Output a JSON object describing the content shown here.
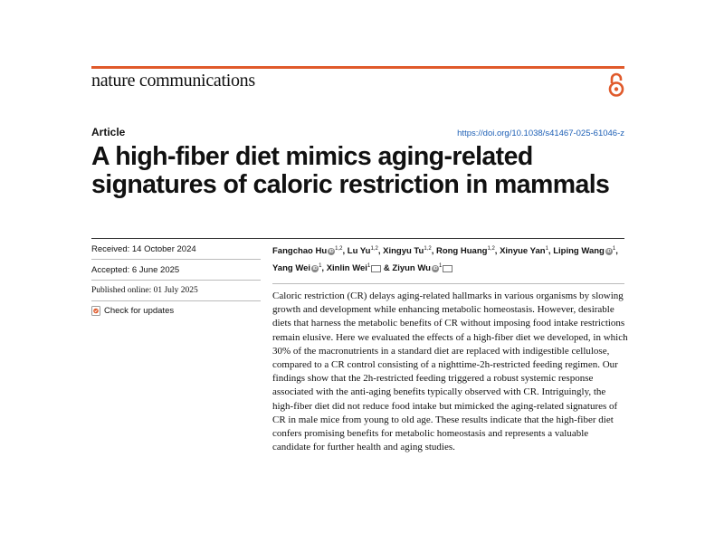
{
  "journal": "nature communications",
  "article_type": "Article",
  "doi": "https://doi.org/10.1038/s41467-025-61046-z",
  "title_line1": "A high-fiber diet mimics aging-related",
  "title_line2": "signatures of caloric restriction in mammals",
  "received": "Received: 14 October 2024",
  "accepted": "Accepted: 6 June 2025",
  "published": "Published online: 01 July 2025",
  "check_updates": "Check for updates",
  "authors": [
    {
      "name": "Fangchao Hu",
      "aff": "1,2",
      "orcid": true,
      "mail": false
    },
    {
      "name": "Lu Yu",
      "aff": "1,2",
      "orcid": false,
      "mail": false
    },
    {
      "name": "Xingyu Tu",
      "aff": "1,2",
      "orcid": false,
      "mail": false
    },
    {
      "name": "Rong Huang",
      "aff": "1,2",
      "orcid": false,
      "mail": false
    },
    {
      "name": "Xinyue Yan",
      "aff": "1",
      "orcid": false,
      "mail": false
    },
    {
      "name": "Liping Wang",
      "aff": "1",
      "orcid": true,
      "mail": false
    },
    {
      "name": "Yang Wei",
      "aff": "1",
      "orcid": true,
      "mail": false
    },
    {
      "name": "Xinlin Wei",
      "aff": "1",
      "orcid": false,
      "mail": true
    },
    {
      "name": "Ziyun Wu",
      "aff": "1",
      "orcid": true,
      "mail": true
    }
  ],
  "abstract": "Caloric restriction (CR) delays aging-related hallmarks in various organisms by slowing growth and development while enhancing metabolic homeostasis. However, desirable diets that harness the metabolic benefits of CR without imposing food intake restrictions remain elusive. Here we evaluated the effects of a high-fiber diet we developed, in which 30% of the macronutrients in a standard diet are replaced with indigestible cellulose, compared to a CR control consisting of a nighttime-2h-restricted feeding regimen. Our findings show that the 2h-restricted feeding triggered a robust systemic response associated with the anti-aging benefits typically observed with CR. Intriguingly, the high-fiber diet did not reduce food intake but mimicked the aging-related signatures of CR in male mice from young to old age. These results indicate that the high-fiber diet confers promising benefits for metabolic homeostasis and represents a valuable candidate for further health and aging studies.",
  "colors": {
    "accent": "#e05a2b",
    "link": "#1d5fb5"
  },
  "icons": [
    "open-access-icon",
    "orcid-icon",
    "mail-icon",
    "check-updates-icon"
  ]
}
